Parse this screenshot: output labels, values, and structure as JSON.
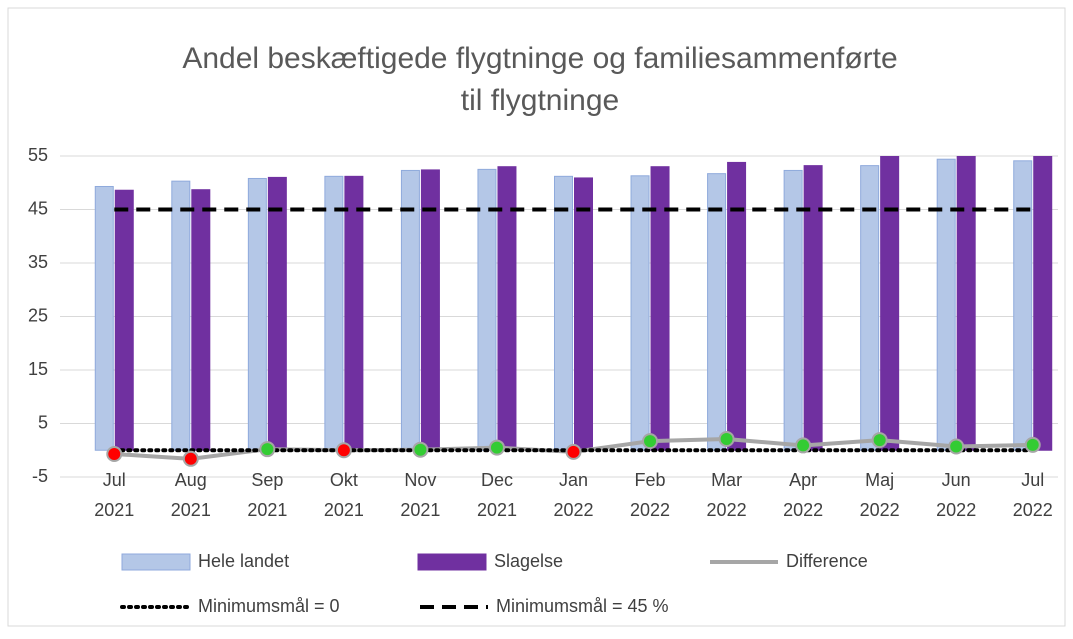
{
  "chart_data": {
    "type": "bar",
    "title": [
      "Andel beskæftigede flygtninge og familiesammenførte",
      "til flygtninge"
    ],
    "categories": [
      [
        "Jul",
        "2021"
      ],
      [
        "Aug",
        "2021"
      ],
      [
        "Sep",
        "2021"
      ],
      [
        "Okt",
        "2021"
      ],
      [
        "Nov",
        "2021"
      ],
      [
        "Dec",
        "2021"
      ],
      [
        "Jan",
        "2022"
      ],
      [
        "Feb",
        "2022"
      ],
      [
        "Mar",
        "2022"
      ],
      [
        "Apr",
        "2022"
      ],
      [
        "Maj",
        "2022"
      ],
      [
        "Jun",
        "2022"
      ],
      [
        "Jul",
        "2022"
      ]
    ],
    "ylim": [
      -5,
      55
    ],
    "yticks": [
      -5,
      5,
      15,
      25,
      35,
      45,
      55
    ],
    "grid": true,
    "series": [
      {
        "name": "Hele landet",
        "type": "bar",
        "color": "#b4c7e7",
        "values": [
          49.3,
          50.3,
          50.8,
          51.2,
          52.3,
          52.5,
          51.2,
          51.3,
          51.7,
          52.3,
          53.2,
          54.4,
          54.1
        ]
      },
      {
        "name": "Slagelse",
        "type": "bar",
        "color": "#7030a0",
        "values": [
          48.6,
          48.7,
          51.0,
          51.2,
          52.4,
          53.0,
          50.9,
          53.0,
          53.8,
          53.2,
          55.1,
          55.1,
          55.1
        ]
      },
      {
        "name": "Difference",
        "type": "line",
        "color": "#a6a6a6",
        "values": [
          -0.7,
          -1.6,
          0.2,
          0.0,
          0.1,
          0.5,
          -0.3,
          1.7,
          2.1,
          0.9,
          1.9,
          0.7,
          1.0
        ],
        "marker_colors": [
          "#ff0000",
          "#ff0000",
          "#33cc33",
          "#ff0000",
          "#33cc33",
          "#33cc33",
          "#ff0000",
          "#33cc33",
          "#33cc33",
          "#33cc33",
          "#33cc33",
          "#33cc33",
          "#33cc33"
        ]
      },
      {
        "name": "Minimumsmål = 0",
        "type": "line",
        "style": "dotted",
        "color": "#000000",
        "values": [
          0,
          0,
          0,
          0,
          0,
          0,
          0,
          0,
          0,
          0,
          0,
          0,
          0
        ]
      },
      {
        "name": "Minimumsmål = 45 %",
        "type": "line",
        "style": "dashed",
        "color": "#000000",
        "values": [
          45,
          45,
          45,
          45,
          45,
          45,
          45,
          45,
          45,
          45,
          45,
          45,
          45
        ]
      }
    ]
  }
}
